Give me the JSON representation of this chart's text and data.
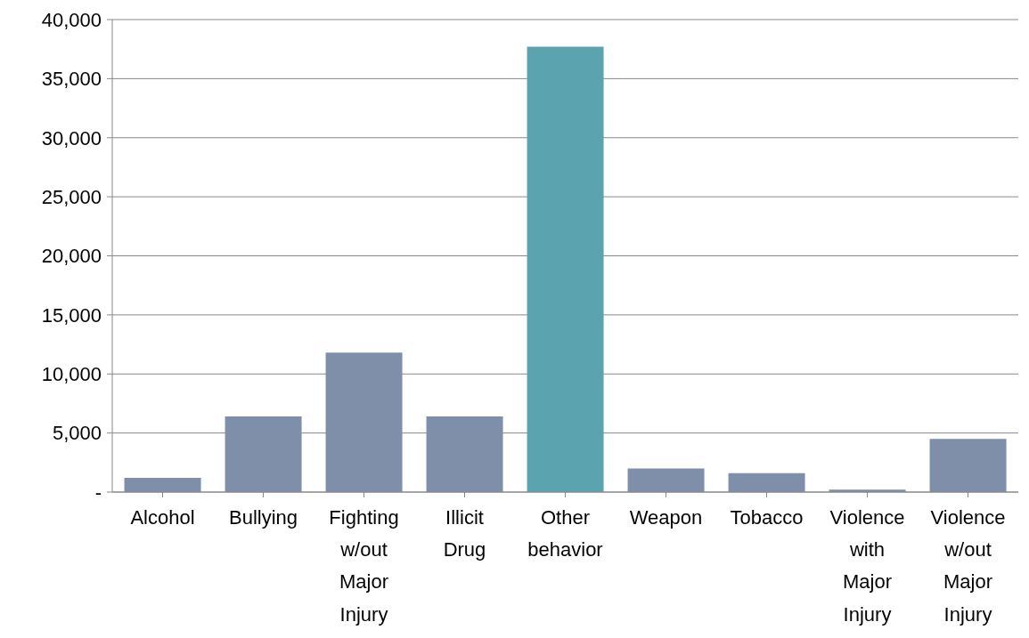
{
  "chart_data": {
    "type": "bar",
    "categories": [
      "Alcohol",
      "Bullying",
      "Fighting w/out Major Injury",
      "Illicit Drug",
      "Other behavior",
      "Weapon",
      "Tobacco",
      "Violence with Major Injury",
      "Violence w/out Major Injury"
    ],
    "values": [
      1200,
      6400,
      11800,
      6400,
      37700,
      2000,
      1600,
      200,
      4500
    ],
    "colors": [
      "#7f8fa9",
      "#7f8fa9",
      "#7f8fa9",
      "#7f8fa9",
      "#5ba3ae",
      "#7f8fa9",
      "#7f8fa9",
      "#7f8fa9",
      "#7f8fa9"
    ],
    "ylim": [
      0,
      40000
    ],
    "yticks": [
      {
        "value": 0,
        "label": "-"
      },
      {
        "value": 5000,
        "label": "5,000"
      },
      {
        "value": 10000,
        "label": "10,000"
      },
      {
        "value": 15000,
        "label": "15,000"
      },
      {
        "value": 20000,
        "label": "20,000"
      },
      {
        "value": 25000,
        "label": "25,000"
      },
      {
        "value": 30000,
        "label": "30,000"
      },
      {
        "value": 35000,
        "label": "35,000"
      },
      {
        "value": 40000,
        "label": "40,000"
      }
    ],
    "grid": "y",
    "legend": false
  }
}
